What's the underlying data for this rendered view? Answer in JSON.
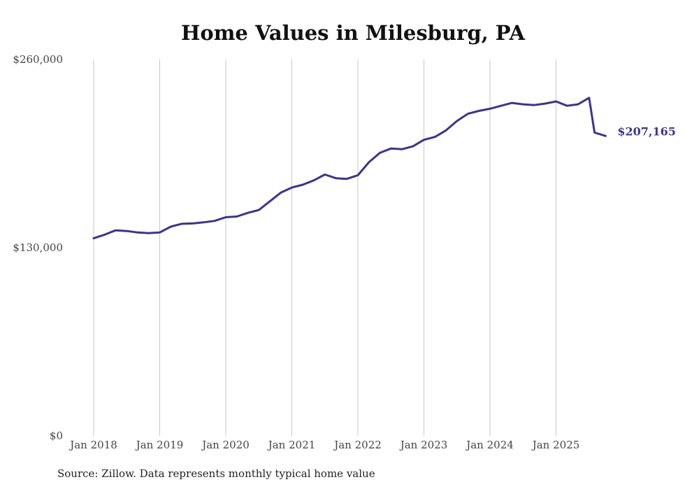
{
  "chart_data": {
    "type": "line",
    "title": "Home Values in Milesburg, PA",
    "xlabel": "",
    "ylabel": "",
    "ylim": [
      0,
      260000
    ],
    "y_ticks": [
      {
        "value": 0,
        "label": "$0"
      },
      {
        "value": 130000,
        "label": "$130,000"
      },
      {
        "value": 260000,
        "label": "$260,000"
      }
    ],
    "x_range": [
      2018.0,
      2025.75
    ],
    "x_ticks": [
      {
        "value": 2018,
        "label": "Jan 2018"
      },
      {
        "value": 2019,
        "label": "Jan 2019"
      },
      {
        "value": 2020,
        "label": "Jan 2020"
      },
      {
        "value": 2021,
        "label": "Jan 2021"
      },
      {
        "value": 2022,
        "label": "Jan 2022"
      },
      {
        "value": 2023,
        "label": "Jan 2023"
      },
      {
        "value": 2024,
        "label": "Jan 2024"
      },
      {
        "value": 2025,
        "label": "Jan 2025"
      }
    ],
    "grid": "vertical",
    "series": [
      {
        "name": "Typical home value",
        "color": "#3d348b",
        "points": [
          [
            2018.0,
            136500
          ],
          [
            2018.167,
            139000
          ],
          [
            2018.333,
            142000
          ],
          [
            2018.5,
            141500
          ],
          [
            2018.667,
            140500
          ],
          [
            2018.833,
            140000
          ],
          [
            2019.0,
            140500
          ],
          [
            2019.167,
            144500
          ],
          [
            2019.333,
            146500
          ],
          [
            2019.5,
            146700
          ],
          [
            2019.667,
            147500
          ],
          [
            2019.833,
            148500
          ],
          [
            2020.0,
            151000
          ],
          [
            2020.167,
            151500
          ],
          [
            2020.333,
            154000
          ],
          [
            2020.5,
            156000
          ],
          [
            2020.667,
            162000
          ],
          [
            2020.833,
            168000
          ],
          [
            2021.0,
            171500
          ],
          [
            2021.167,
            173500
          ],
          [
            2021.333,
            176500
          ],
          [
            2021.5,
            180500
          ],
          [
            2021.667,
            178000
          ],
          [
            2021.833,
            177500
          ],
          [
            2022.0,
            180000
          ],
          [
            2022.167,
            189000
          ],
          [
            2022.333,
            195500
          ],
          [
            2022.5,
            198500
          ],
          [
            2022.667,
            198000
          ],
          [
            2022.833,
            200000
          ],
          [
            2023.0,
            204500
          ],
          [
            2023.167,
            206500
          ],
          [
            2023.333,
            211000
          ],
          [
            2023.5,
            217500
          ],
          [
            2023.667,
            222500
          ],
          [
            2023.833,
            224500
          ],
          [
            2024.0,
            226000
          ],
          [
            2024.167,
            228000
          ],
          [
            2024.333,
            230000
          ],
          [
            2024.5,
            229000
          ],
          [
            2024.667,
            228500
          ],
          [
            2024.833,
            229500
          ],
          [
            2025.0,
            231000
          ],
          [
            2025.167,
            228000
          ],
          [
            2025.333,
            229000
          ],
          [
            2025.5,
            233500
          ],
          [
            2025.583,
            209500
          ],
          [
            2025.75,
            207165
          ]
        ]
      }
    ],
    "end_label": "$207,165",
    "source": "Source: Zillow. Data represents monthly typical home value"
  }
}
